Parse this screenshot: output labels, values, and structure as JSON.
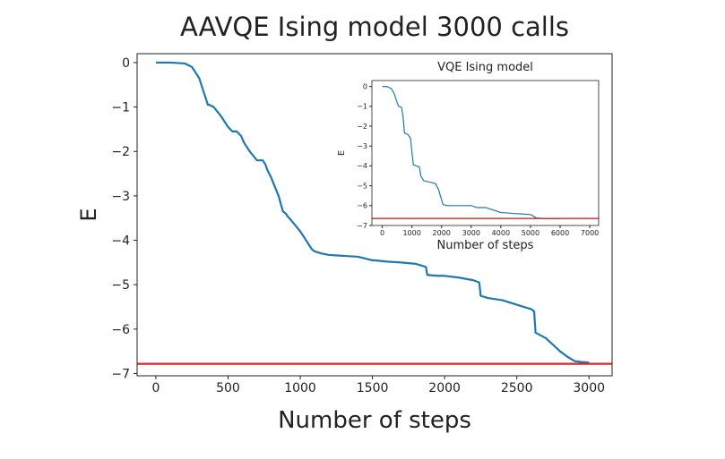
{
  "chart_data": [
    {
      "type": "line",
      "title": "AAVQE Ising model 3000 calls",
      "xlabel": "Number of steps",
      "ylabel": "E",
      "xlim": [
        -130,
        3160
      ],
      "ylim": [
        -7.05,
        0.2
      ],
      "xticks": [
        0,
        500,
        1000,
        1500,
        2000,
        2500,
        3000
      ],
      "yticks": [
        0,
        -1,
        -2,
        -3,
        -4,
        -5,
        -6,
        -7
      ],
      "xtick_labels": [
        "0",
        "500",
        "1000",
        "1500",
        "2000",
        "2500",
        "3000"
      ],
      "ytick_labels": [
        "0",
        "−1",
        "−2",
        "−3",
        "−4",
        "−5",
        "−6",
        "−7"
      ],
      "grid": false,
      "series": [
        {
          "color": "#1f77b4",
          "x": [
            0,
            100,
            200,
            250,
            300,
            340,
            360,
            370,
            400,
            450,
            500,
            530,
            560,
            590,
            610,
            650,
            700,
            740,
            760,
            770,
            800,
            850,
            880,
            900,
            910,
            950,
            1000,
            1030,
            1060,
            1080,
            1100,
            1150,
            1200,
            1300,
            1400,
            1500,
            1510,
            1600,
            1700,
            1800,
            1870,
            1880,
            1950,
            2000,
            2100,
            2200,
            2240,
            2250,
            2300,
            2400,
            2500,
            2600,
            2620,
            2630,
            2700,
            2750,
            2800,
            2850,
            2900,
            2950,
            3000
          ],
          "y": [
            0.0,
            0.0,
            -0.02,
            -0.1,
            -0.35,
            -0.75,
            -0.95,
            -0.95,
            -1.0,
            -1.2,
            -1.45,
            -1.55,
            -1.55,
            -1.65,
            -1.8,
            -2.0,
            -2.2,
            -2.2,
            -2.3,
            -2.4,
            -2.6,
            -3.0,
            -3.35,
            -3.4,
            -3.45,
            -3.6,
            -3.8,
            -3.95,
            -4.1,
            -4.2,
            -4.25,
            -4.3,
            -4.33,
            -4.35,
            -4.37,
            -4.45,
            -4.45,
            -4.48,
            -4.5,
            -4.53,
            -4.6,
            -4.78,
            -4.8,
            -4.8,
            -4.84,
            -4.9,
            -4.95,
            -5.25,
            -5.3,
            -5.35,
            -5.45,
            -5.55,
            -5.6,
            -6.08,
            -6.2,
            -6.35,
            -6.5,
            -6.62,
            -6.72,
            -6.74,
            -6.75
          ]
        },
        {
          "color": "#d62728",
          "x": [
            -130,
            3160
          ],
          "y": [
            -6.78,
            -6.78
          ]
        }
      ]
    },
    {
      "type": "line",
      "title": "VQE Ising model",
      "xlabel": "Number of steps",
      "ylabel": "E",
      "xlim": [
        -350,
        7300
      ],
      "ylim": [
        -7.0,
        0.3
      ],
      "xticks": [
        0,
        1000,
        2000,
        3000,
        4000,
        5000,
        6000,
        7000
      ],
      "yticks": [
        0,
        -1,
        -2,
        -3,
        -4,
        -5,
        -6,
        -7
      ],
      "xtick_labels": [
        "0",
        "1000",
        "2000",
        "3000",
        "4000",
        "5000",
        "6000",
        "7000"
      ],
      "ytick_labels": [
        "0",
        "−1",
        "−2",
        "−3",
        "−4",
        "−5",
        "−6",
        "−7"
      ],
      "grid": false,
      "series": [
        {
          "color": "#1f77b4",
          "x": [
            0,
            150,
            300,
            400,
            500,
            550,
            650,
            700,
            750,
            850,
            950,
            1000,
            1050,
            1150,
            1250,
            1300,
            1400,
            1550,
            1700,
            1800,
            1900,
            2000,
            2050,
            2200,
            2500,
            3000,
            3200,
            3500,
            4000,
            4500,
            4700,
            5000,
            5200,
            5500,
            6000
          ],
          "y": [
            0.0,
            0.0,
            -0.1,
            -0.35,
            -0.8,
            -1.0,
            -1.05,
            -1.5,
            -2.35,
            -2.4,
            -2.6,
            -3.3,
            -3.95,
            -4.0,
            -4.05,
            -4.5,
            -4.75,
            -4.8,
            -4.85,
            -4.9,
            -5.2,
            -5.7,
            -5.95,
            -6.0,
            -6.0,
            -6.0,
            -6.1,
            -6.1,
            -6.35,
            -6.4,
            -6.42,
            -6.45,
            -6.62,
            -6.65,
            -6.65
          ]
        },
        {
          "color": "#d62728",
          "x": [
            -350,
            7300
          ],
          "y": [
            -6.65,
            -6.65
          ]
        }
      ]
    }
  ]
}
